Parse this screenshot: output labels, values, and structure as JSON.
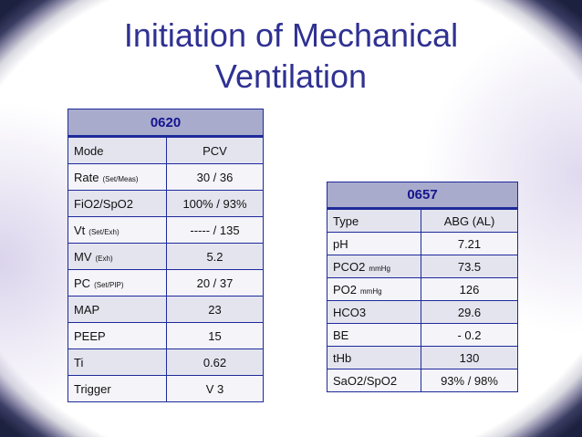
{
  "title": {
    "line1": "Initiation of Mechanical",
    "line2": "Ventilation"
  },
  "colors": {
    "title": "#2f3192",
    "table_header_bg": "#a9abcd",
    "table_border": "#1e2a9a",
    "background": "#1d2140"
  },
  "vent_table": {
    "header": "0620",
    "rows": [
      {
        "label": "Mode",
        "sub": "",
        "value": "PCV"
      },
      {
        "label": "Rate",
        "sub": "(Set/Meas)",
        "value": "30 / 36"
      },
      {
        "label": "FiO2/SpO2",
        "sub": "",
        "value": "100% / 93%"
      },
      {
        "label": "Vt",
        "sub": "(Set/Exh)",
        "value": "----- / 135"
      },
      {
        "label": "MV",
        "sub": "(Exh)",
        "value": "5.2"
      },
      {
        "label": "PC",
        "sub": "(Set/PIP)",
        "value": "20 / 37"
      },
      {
        "label": "MAP",
        "sub": "",
        "value": "23"
      },
      {
        "label": "PEEP",
        "sub": "",
        "value": "15"
      },
      {
        "label": "Ti",
        "sub": "",
        "value": "0.62"
      },
      {
        "label": "Trigger",
        "sub": "",
        "value": "V 3"
      }
    ]
  },
  "abg_table": {
    "header": "0657",
    "rows": [
      {
        "label": "Type",
        "sub": "",
        "value": "ABG (AL)"
      },
      {
        "label": "pH",
        "sub": "",
        "value": "7.21"
      },
      {
        "label": "PCO2",
        "sub": "mmHg",
        "value": "73.5"
      },
      {
        "label": "PO2",
        "sub": "mmHg",
        "value": "126"
      },
      {
        "label": "HCO3",
        "sub": "",
        "value": "29.6"
      },
      {
        "label": "BE",
        "sub": "",
        "value": "- 0.2"
      },
      {
        "label": "tHb",
        "sub": "",
        "value": "130"
      },
      {
        "label": "SaO2/SpO2",
        "sub": "",
        "value": "93% / 98%"
      }
    ]
  }
}
